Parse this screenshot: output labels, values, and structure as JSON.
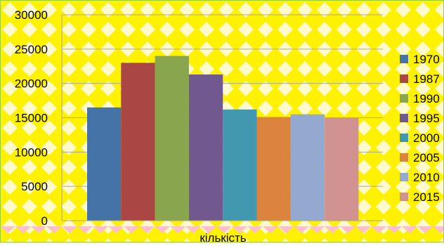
{
  "chart_data": {
    "type": "bar",
    "categories": [
      "кількість"
    ],
    "series": [
      {
        "name": "1970",
        "values": [
          16500
        ],
        "color": "#4572A7"
      },
      {
        "name": "1987",
        "values": [
          23000
        ],
        "color": "#AA4643"
      },
      {
        "name": "1990",
        "values": [
          24000
        ],
        "color": "#89A54E"
      },
      {
        "name": "1995",
        "values": [
          21300
        ],
        "color": "#71588F"
      },
      {
        "name": "2000",
        "values": [
          16200
        ],
        "color": "#4198AF"
      },
      {
        "name": "2005",
        "values": [
          15100
        ],
        "color": "#DB843D"
      },
      {
        "name": "2010",
        "values": [
          15500
        ],
        "color": "#93A9CF"
      },
      {
        "name": "2015",
        "values": [
          15000
        ],
        "color": "#D19392"
      }
    ],
    "title": "",
    "xlabel": "",
    "ylabel": "",
    "ylim": [
      0,
      30000
    ],
    "yticks": [
      "0",
      "5000",
      "10000",
      "15000",
      "20000",
      "25000",
      "30000"
    ],
    "grid": true,
    "legend_position": "right",
    "colors": {
      "background": "#FFF200",
      "background_pattern": "#FFFACD",
      "bottom_pattern": "#FFC0CB",
      "gridline": "#A6A6A6",
      "border": "#9ACD32"
    }
  }
}
